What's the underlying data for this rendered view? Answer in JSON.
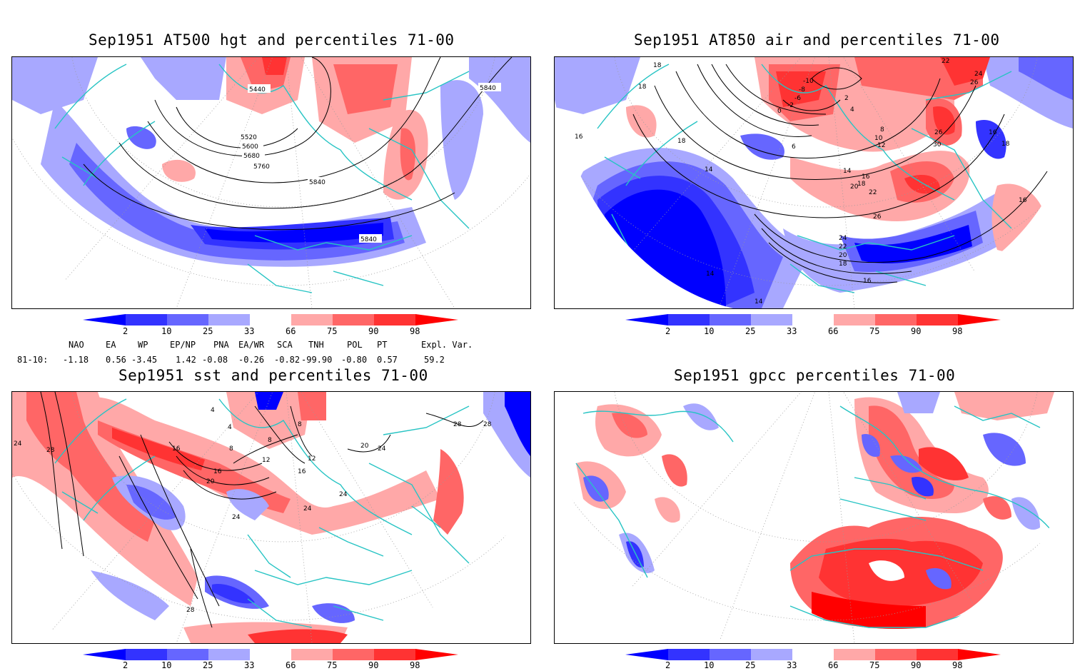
{
  "panels": [
    {
      "id": "hgt500",
      "title": "Sep1951 AT500 hgt and percentiles 71-00",
      "contour_labels": [
        "5440",
        "5840",
        "5520",
        "5600",
        "5680",
        "5760",
        "5840",
        "5840"
      ]
    },
    {
      "id": "air850",
      "title": "Sep1951 AT850 air and percentiles 71-00",
      "contour_labels": [
        "18",
        "18",
        "16",
        "14",
        "14",
        "14",
        "18",
        "16",
        "18",
        "16",
        "22",
        "24",
        "26",
        "26",
        "30",
        "24",
        "22",
        "20",
        "18",
        "16",
        "14",
        "16",
        "18",
        "20",
        "22",
        "26",
        "-10",
        "-8",
        "-6",
        "-2",
        "0",
        "2",
        "4",
        "6",
        "8",
        "10",
        "12"
      ]
    },
    {
      "id": "sst",
      "title": "Sep1951 sst and percentiles 71-00",
      "contour_labels": [
        "24",
        "28",
        "16",
        "8",
        "4",
        "8",
        "20",
        "16",
        "12",
        "24",
        "24",
        "28",
        "28",
        "20",
        "24",
        "4",
        "8",
        "12",
        "16",
        "28",
        "24"
      ]
    },
    {
      "id": "gpcc",
      "title": "Sep1951 gpcc percentiles 71-00",
      "contour_labels": []
    }
  ],
  "colorbar": {
    "ticks": [
      "2",
      "10",
      "25",
      "33",
      "66",
      "75",
      "90",
      "98"
    ],
    "colors": {
      "below2": "#0000ff",
      "c2_10": "#3333ff",
      "c10_25": "#6666ff",
      "c25_33": "#a8a8ff",
      "c33_66": "#ffffff",
      "c66_75": "#ffa8a8",
      "c75_90": "#ff6666",
      "c90_98": "#ff3333",
      "above98": "#ff0000"
    }
  },
  "indices": {
    "headers": [
      "NAO",
      "EA",
      "WP",
      "EP/NP",
      "PNA",
      "EA/WR",
      "SCA",
      "TNH",
      "POL",
      "PT",
      "Expl. Var."
    ],
    "row_label": "81-10:",
    "values": [
      "-1.18",
      "0.56",
      "-3.45",
      "1.42",
      "-0.08",
      "-0.26",
      "-0.82",
      "-99.90",
      "-0.80",
      "0.57",
      "59.2"
    ]
  },
  "colors": {
    "coast": "#27c4c4",
    "contour": "#000000",
    "grid": "#9a9a9a"
  }
}
